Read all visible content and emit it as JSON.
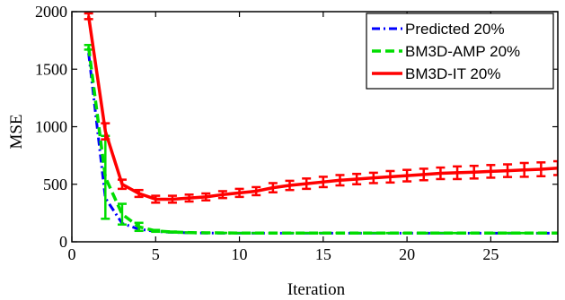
{
  "chart_data": {
    "type": "line",
    "xlabel": "Iteration",
    "ylabel": "MSE",
    "xlim": [
      0,
      29
    ],
    "ylim": [
      0,
      2000
    ],
    "xticks": [
      0,
      5,
      10,
      15,
      20,
      25
    ],
    "yticks": [
      0,
      500,
      1000,
      1500,
      2000
    ],
    "grid": false,
    "legend_position": "top-right",
    "series": [
      {
        "name": "Predicted 20%",
        "color": "#0000ff",
        "style": "dash-dot",
        "x": [
          1,
          2,
          3,
          4,
          5,
          6,
          7,
          8,
          9,
          10,
          11,
          12,
          13,
          14,
          15,
          16,
          17,
          18,
          19,
          20,
          21,
          22,
          23,
          24,
          25,
          26,
          27,
          28,
          29
        ],
        "y": [
          1640,
          380,
          160,
          110,
          90,
          82,
          78,
          76,
          75,
          75,
          75,
          75,
          75,
          75,
          75,
          75,
          75,
          75,
          75,
          75,
          75,
          75,
          75,
          75,
          75,
          75,
          75,
          75,
          75
        ]
      },
      {
        "name": "BM3D-AMP 20%",
        "color": "#00dd00",
        "style": "dashed",
        "x": [
          1,
          2,
          3,
          4,
          5,
          6,
          7,
          8,
          9,
          10,
          11,
          12,
          13,
          14,
          15,
          16,
          17,
          18,
          19,
          20,
          21,
          22,
          23,
          24,
          25,
          26,
          27,
          28,
          29
        ],
        "y": [
          1690,
          560,
          240,
          130,
          95,
          85,
          80,
          78,
          77,
          76,
          76,
          76,
          76,
          76,
          76,
          76,
          76,
          76,
          76,
          76,
          76,
          76,
          76,
          76,
          76,
          76,
          76,
          76,
          76
        ],
        "err": [
          20,
          360,
          90,
          35,
          8,
          4,
          2,
          2,
          1,
          1,
          1,
          1,
          1,
          1,
          1,
          1,
          1,
          1,
          1,
          1,
          1,
          1,
          1,
          1,
          1,
          1,
          1,
          1,
          1
        ]
      },
      {
        "name": "BM3D-IT 20%",
        "color": "#ff0000",
        "style": "solid",
        "x": [
          1,
          2,
          3,
          4,
          5,
          6,
          7,
          8,
          9,
          10,
          11,
          12,
          13,
          14,
          15,
          16,
          17,
          18,
          19,
          20,
          21,
          22,
          23,
          24,
          25,
          26,
          27,
          28,
          29
        ],
        "y": [
          1960,
          960,
          500,
          420,
          370,
          370,
          380,
          390,
          410,
          425,
          440,
          470,
          490,
          505,
          520,
          535,
          545,
          555,
          565,
          575,
          585,
          595,
          600,
          605,
          612,
          618,
          625,
          630,
          640
        ],
        "err": [
          25,
          70,
          40,
          30,
          30,
          30,
          30,
          30,
          30,
          35,
          35,
          40,
          40,
          45,
          45,
          45,
          45,
          45,
          50,
          50,
          50,
          50,
          55,
          55,
          55,
          55,
          60,
          60,
          60
        ]
      }
    ]
  }
}
